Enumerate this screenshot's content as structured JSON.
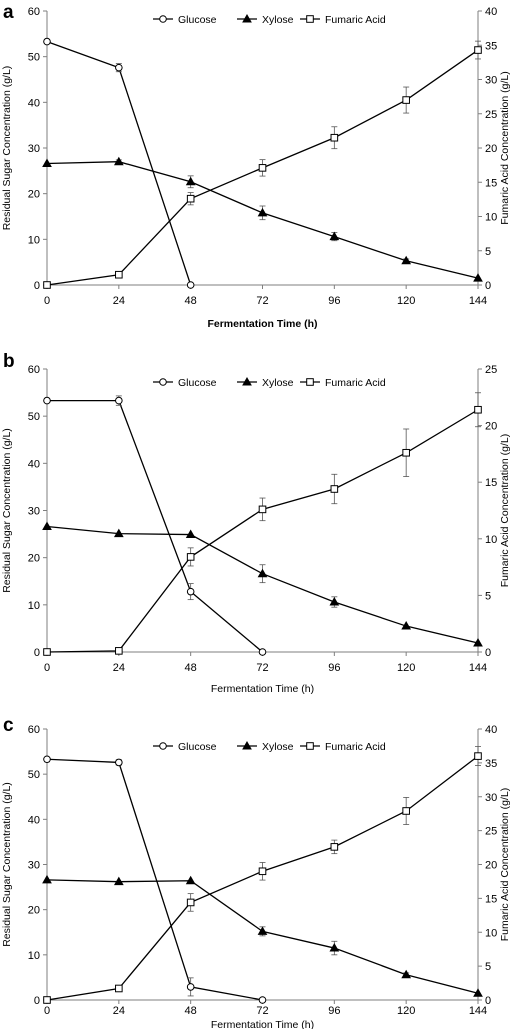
{
  "chart_data": [
    {
      "type": "line",
      "panel_label": "a",
      "x": [
        0,
        24,
        48,
        72,
        96,
        120,
        144
      ],
      "x_ticks": [
        "0",
        "24",
        "48",
        "72",
        "96",
        "120",
        "144"
      ],
      "xlim": [
        0,
        144
      ],
      "xlabel": "Fermentation Time (h)",
      "ylabel": "Residual Sugar Concentration (g/L)",
      "ylim": [
        0,
        60
      ],
      "y_ticks": [
        "0",
        "10",
        "20",
        "30",
        "40",
        "50",
        "60"
      ],
      "y2label": "Fumaric Acid Concentration (g/L)",
      "y2lim": [
        0,
        40
      ],
      "y2_ticks": [
        "0",
        "5",
        "10",
        "15",
        "20",
        "25",
        "30",
        "35",
        "40"
      ],
      "legend_position": "top-center",
      "grid": false,
      "series": [
        {
          "name": "Glucose",
          "marker": "circle",
          "axis": "left",
          "x": [
            0,
            24,
            48
          ],
          "values": [
            53.3,
            47.6,
            0
          ],
          "error": [
            0,
            0.9,
            0
          ]
        },
        {
          "name": "Xylose",
          "marker": "triangle",
          "axis": "left",
          "x": [
            0,
            24,
            48,
            72,
            96,
            120,
            144
          ],
          "values": [
            26.6,
            27.0,
            22.6,
            15.8,
            10.6,
            5.3,
            1.5
          ],
          "error": [
            0,
            0.4,
            1.3,
            1.5,
            0.9,
            0.4,
            0
          ]
        },
        {
          "name": "Fumaric Acid",
          "marker": "square",
          "axis": "right",
          "x": [
            0,
            24,
            48,
            72,
            96,
            120,
            144
          ],
          "values": [
            0,
            1.5,
            12.6,
            17.1,
            21.5,
            27.0,
            34.3
          ],
          "error": [
            0,
            0.3,
            0.9,
            1.2,
            1.6,
            1.9,
            1.3
          ]
        }
      ]
    },
    {
      "type": "line",
      "panel_label": "b",
      "x": [
        0,
        24,
        48,
        72,
        96,
        120,
        144
      ],
      "x_ticks": [
        "0",
        "24",
        "48",
        "72",
        "96",
        "120",
        "144"
      ],
      "xlim": [
        0,
        144
      ],
      "xlabel": "Fermentation Time (h)",
      "ylabel": "Residual  Sugar Concentration (g/L)",
      "ylim": [
        0,
        60
      ],
      "y_ticks": [
        "0",
        "10",
        "20",
        "30",
        "40",
        "50",
        "60"
      ],
      "y2label": "Fumaric Acid Concentration (g/L)",
      "y2lim": [
        0,
        25
      ],
      "y2_ticks": [
        "0",
        "5",
        "10",
        "15",
        "20",
        "25"
      ],
      "legend_position": "top-center",
      "grid": false,
      "series": [
        {
          "name": "Glucose",
          "marker": "circle",
          "axis": "left",
          "x": [
            0,
            24,
            48,
            72
          ],
          "values": [
            53.3,
            53.3,
            12.8,
            0
          ],
          "error": [
            0,
            1.0,
            1.7,
            0
          ]
        },
        {
          "name": "Xylose",
          "marker": "triangle",
          "axis": "left",
          "x": [
            0,
            24,
            48,
            72,
            96,
            120,
            144
          ],
          "values": [
            26.6,
            25.1,
            24.9,
            16.6,
            10.6,
            5.5,
            1.9
          ],
          "error": [
            0,
            0,
            0,
            1.9,
            1.1,
            0,
            0
          ]
        },
        {
          "name": "Fumaric Acid",
          "marker": "square",
          "axis": "right",
          "x": [
            0,
            24,
            48,
            72,
            96,
            120,
            144
          ],
          "values": [
            0,
            0.1,
            8.4,
            12.6,
            14.4,
            17.6,
            21.4
          ],
          "error": [
            0,
            0,
            0.8,
            1.0,
            1.3,
            2.1,
            1.5
          ]
        }
      ]
    },
    {
      "type": "line",
      "panel_label": "c",
      "x": [
        0,
        24,
        48,
        72,
        96,
        120,
        144
      ],
      "x_ticks": [
        "0",
        "24",
        "48",
        "72",
        "96",
        "120",
        "144"
      ],
      "xlim": [
        0,
        144
      ],
      "xlabel": "Fermentation Time (h)",
      "ylabel": "Residual Sugar Concentration (g/L)",
      "ylim": [
        0,
        60
      ],
      "y_ticks": [
        "0",
        "10",
        "20",
        "30",
        "40",
        "50",
        "60"
      ],
      "y2label": "Fumaric Acid Concentration (g/L)",
      "y2lim": [
        0,
        40
      ],
      "y2_ticks": [
        "0",
        "5",
        "10",
        "15",
        "20",
        "25",
        "30",
        "35",
        "40"
      ],
      "legend_position": "top-center",
      "grid": false,
      "series": [
        {
          "name": "Glucose",
          "marker": "circle",
          "axis": "left",
          "x": [
            0,
            24,
            48,
            72
          ],
          "values": [
            53.3,
            52.6,
            2.9,
            0
          ],
          "error": [
            0,
            0.6,
            2.0,
            0
          ]
        },
        {
          "name": "Xylose",
          "marker": "triangle",
          "axis": "left",
          "x": [
            0,
            24,
            48,
            72,
            96,
            120,
            144
          ],
          "values": [
            26.6,
            26.2,
            26.4,
            15.2,
            11.5,
            5.6,
            1.5
          ],
          "error": [
            0,
            0,
            0,
            1.0,
            1.5,
            0.4,
            0
          ]
        },
        {
          "name": "Fumaric Acid",
          "marker": "square",
          "axis": "right",
          "x": [
            0,
            24,
            48,
            72,
            96,
            120,
            144
          ],
          "values": [
            0,
            1.7,
            14.4,
            19.0,
            22.6,
            27.9,
            36.0
          ],
          "error": [
            0,
            0.3,
            1.3,
            1.3,
            1.0,
            2.0,
            1.4
          ]
        }
      ]
    }
  ]
}
